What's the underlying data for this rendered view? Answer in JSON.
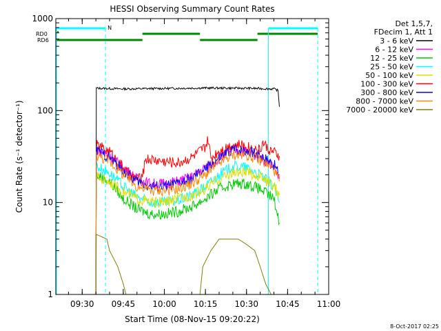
{
  "chart_data": {
    "type": "line",
    "title": "HESSI Observing Summary Count Rates",
    "xlabel": "Start Time (08-Nov-15 09:20:22)",
    "ylabel": "Count Rate (s⁻¹ detector⁻¹)",
    "y_scale": "log",
    "ylim": [
      1,
      1000
    ],
    "y_ticks": [
      "1",
      "10",
      "100",
      "1000"
    ],
    "xlim": [
      "09:20:22",
      "11:00"
    ],
    "x_ticks": [
      "09:30",
      "09:45",
      "10:00",
      "10:15",
      "10:30",
      "10:45",
      "11:00"
    ],
    "legend_header": [
      "Det 1,5,7,",
      "FDecim 1, Att 1"
    ],
    "legend_position": "right",
    "series": [
      {
        "name": "3 - 6 keV",
        "color": "#000000",
        "points": [
          [
            "09:35:00",
            1
          ],
          [
            "09:35:10",
            175
          ],
          [
            "09:45",
            172
          ],
          [
            "10:00",
            174
          ],
          [
            "10:15",
            176
          ],
          [
            "10:30",
            175
          ],
          [
            "10:40",
            172
          ],
          [
            "10:41:30",
            165
          ],
          [
            "10:42",
            110
          ]
        ]
      },
      {
        "name": "6 - 12 keV",
        "color": "#ff00ff",
        "points": [
          [
            "09:35:00",
            1
          ],
          [
            "09:35:10",
            38
          ],
          [
            "09:40",
            32
          ],
          [
            "09:45",
            24
          ],
          [
            "09:50",
            18
          ],
          [
            "09:55",
            16
          ],
          [
            "10:00",
            16
          ],
          [
            "10:05",
            17
          ],
          [
            "10:10",
            19
          ],
          [
            "10:15",
            24
          ],
          [
            "10:20",
            30
          ],
          [
            "10:25",
            37
          ],
          [
            "10:30",
            36
          ],
          [
            "10:35",
            31
          ],
          [
            "10:40",
            25
          ],
          [
            "10:42",
            18
          ]
        ]
      },
      {
        "name": "12 - 25 keV",
        "color": "#00cc00",
        "points": [
          [
            "09:35:00",
            1
          ],
          [
            "09:35:10",
            20
          ],
          [
            "09:40",
            17
          ],
          [
            "09:45",
            11
          ],
          [
            "09:50",
            8.5
          ],
          [
            "09:55",
            7.5
          ],
          [
            "10:00",
            7.5
          ],
          [
            "10:05",
            8
          ],
          [
            "10:10",
            9
          ],
          [
            "10:15",
            11
          ],
          [
            "10:20",
            14
          ],
          [
            "10:25",
            16
          ],
          [
            "10:30",
            16
          ],
          [
            "10:35",
            14
          ],
          [
            "10:40",
            11
          ],
          [
            "10:42",
            6
          ]
        ]
      },
      {
        "name": "25 - 50 keV",
        "color": "#00ffff",
        "points": [
          [
            "09:35:00",
            1
          ],
          [
            "09:35:10",
            25
          ],
          [
            "09:40",
            21
          ],
          [
            "09:45",
            15
          ],
          [
            "09:50",
            11.5
          ],
          [
            "09:55",
            10
          ],
          [
            "10:00",
            10
          ],
          [
            "10:05",
            10.5
          ],
          [
            "10:10",
            12
          ],
          [
            "10:15",
            15
          ],
          [
            "10:20",
            20
          ],
          [
            "10:25",
            25
          ],
          [
            "10:30",
            24
          ],
          [
            "10:35",
            20
          ],
          [
            "10:40",
            15
          ],
          [
            "10:42",
            10
          ]
        ]
      },
      {
        "name": "50 - 100 keV",
        "color": "#dddd00",
        "points": [
          [
            "09:35:00",
            1
          ],
          [
            "09:35:10",
            19
          ],
          [
            "09:40",
            17
          ],
          [
            "09:45",
            13
          ],
          [
            "09:50",
            11
          ],
          [
            "09:55",
            10
          ],
          [
            "10:00",
            10
          ],
          [
            "10:05",
            11
          ],
          [
            "10:10",
            12
          ],
          [
            "10:15",
            14
          ],
          [
            "10:20",
            18
          ],
          [
            "10:25",
            21
          ],
          [
            "10:30",
            21
          ],
          [
            "10:35",
            19
          ],
          [
            "10:40",
            15
          ],
          [
            "10:42",
            12
          ]
        ]
      },
      {
        "name": "100 - 300 keV",
        "color": "#ff0000",
        "points": [
          [
            "09:35:00",
            1
          ],
          [
            "09:35:10",
            42
          ],
          [
            "09:40",
            36
          ],
          [
            "09:45",
            24
          ],
          [
            "09:48",
            19
          ],
          [
            "09:52",
            18
          ],
          [
            "09:53",
            30
          ],
          [
            "10:00",
            28
          ],
          [
            "10:05",
            27
          ],
          [
            "10:10",
            31
          ],
          [
            "10:15",
            40
          ],
          [
            "10:16",
            48
          ],
          [
            "10:17",
            30
          ],
          [
            "10:20",
            37
          ],
          [
            "10:25",
            43
          ],
          [
            "10:30",
            41
          ],
          [
            "10:35",
            37
          ],
          [
            "10:36",
            45
          ],
          [
            "10:38",
            38
          ],
          [
            "10:42",
            32
          ]
        ]
      },
      {
        "name": "300 - 800 keV",
        "color": "#0000ff",
        "points": [
          [
            "09:35:00",
            1
          ],
          [
            "09:35:10",
            37
          ],
          [
            "09:40",
            31
          ],
          [
            "09:45",
            22
          ],
          [
            "09:50",
            17
          ],
          [
            "09:55",
            15
          ],
          [
            "10:00",
            15
          ],
          [
            "10:05",
            16
          ],
          [
            "10:10",
            18
          ],
          [
            "10:15",
            23
          ],
          [
            "10:20",
            30
          ],
          [
            "10:25",
            38
          ],
          [
            "10:30",
            37
          ],
          [
            "10:35",
            33
          ],
          [
            "10:40",
            26
          ],
          [
            "10:42",
            20
          ]
        ]
      },
      {
        "name": "800 - 7000 keV",
        "color": "#ff8800",
        "points": [
          [
            "09:35:00",
            1
          ],
          [
            "09:35:10",
            33
          ],
          [
            "09:40",
            28
          ],
          [
            "09:45",
            20
          ],
          [
            "09:50",
            15
          ],
          [
            "09:55",
            13.5
          ],
          [
            "10:00",
            13.5
          ],
          [
            "10:05",
            14
          ],
          [
            "10:10",
            16
          ],
          [
            "10:15",
            20
          ],
          [
            "10:20",
            27
          ],
          [
            "10:25",
            33
          ],
          [
            "10:30",
            33
          ],
          [
            "10:35",
            29
          ],
          [
            "10:40",
            23
          ],
          [
            "10:42",
            17
          ]
        ]
      },
      {
        "name": "7000 - 20000 keV",
        "color": "#808000",
        "points": [
          [
            "09:35:00",
            1
          ],
          [
            "09:35:10",
            4.5
          ],
          [
            "09:39",
            4
          ],
          [
            "09:40",
            3
          ],
          [
            "09:43",
            2
          ],
          [
            "09:45",
            1.3
          ],
          [
            "09:46",
            1
          ],
          [
            "10:13",
            1
          ],
          [
            "10:14",
            2
          ],
          [
            "10:17",
            3
          ],
          [
            "10:20",
            4
          ],
          [
            "10:27",
            4
          ],
          [
            "10:30",
            3.5
          ],
          [
            "10:33",
            3
          ],
          [
            "10:35",
            2
          ],
          [
            "10:37",
            1.3
          ],
          [
            "10:39",
            1
          ]
        ]
      }
    ],
    "markers": [
      {
        "label": "N",
        "color": "#00ffff",
        "time": "09:38:30"
      }
    ],
    "flag_bars": [
      {
        "label": "RD0",
        "color": "#00aa00",
        "value": 1
      },
      {
        "label": "RD6",
        "color": "#00aa00",
        "value": 1
      }
    ],
    "timestamp": "8-Oct-2017 02:25"
  }
}
